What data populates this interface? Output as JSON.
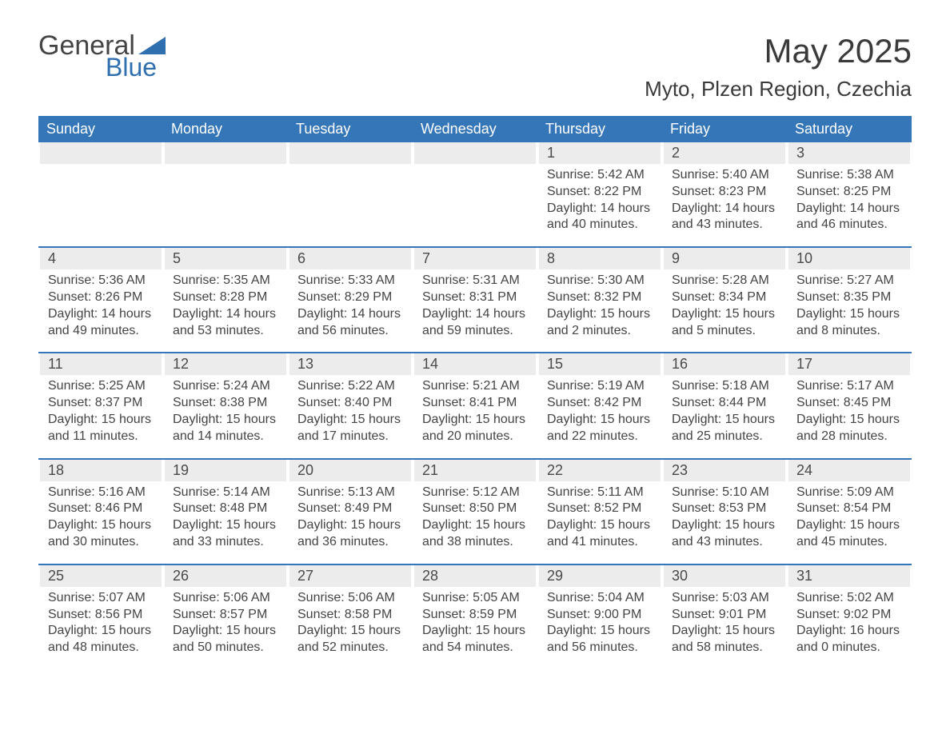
{
  "logo": {
    "general": "General",
    "blue": "Blue"
  },
  "title": "May 2025",
  "location": "Myto, Plzen Region, Czechia",
  "colors": {
    "header_bg": "#3576b8",
    "header_text": "#ffffff",
    "daynum_bg": "#ececec",
    "text": "#3a3a3a",
    "logo_accent": "#2f6fb0",
    "page_bg": "#ffffff"
  },
  "daynames": [
    "Sunday",
    "Monday",
    "Tuesday",
    "Wednesday",
    "Thursday",
    "Friday",
    "Saturday"
  ],
  "labels": {
    "sunrise": "Sunrise:",
    "sunset": "Sunset:",
    "daylight": "Daylight:"
  },
  "leading_blanks": 4,
  "days": [
    {
      "n": "1",
      "sunrise": "5:42 AM",
      "sunset": "8:22 PM",
      "daylight": "14 hours and 40 minutes."
    },
    {
      "n": "2",
      "sunrise": "5:40 AM",
      "sunset": "8:23 PM",
      "daylight": "14 hours and 43 minutes."
    },
    {
      "n": "3",
      "sunrise": "5:38 AM",
      "sunset": "8:25 PM",
      "daylight": "14 hours and 46 minutes."
    },
    {
      "n": "4",
      "sunrise": "5:36 AM",
      "sunset": "8:26 PM",
      "daylight": "14 hours and 49 minutes."
    },
    {
      "n": "5",
      "sunrise": "5:35 AM",
      "sunset": "8:28 PM",
      "daylight": "14 hours and 53 minutes."
    },
    {
      "n": "6",
      "sunrise": "5:33 AM",
      "sunset": "8:29 PM",
      "daylight": "14 hours and 56 minutes."
    },
    {
      "n": "7",
      "sunrise": "5:31 AM",
      "sunset": "8:31 PM",
      "daylight": "14 hours and 59 minutes."
    },
    {
      "n": "8",
      "sunrise": "5:30 AM",
      "sunset": "8:32 PM",
      "daylight": "15 hours and 2 minutes."
    },
    {
      "n": "9",
      "sunrise": "5:28 AM",
      "sunset": "8:34 PM",
      "daylight": "15 hours and 5 minutes."
    },
    {
      "n": "10",
      "sunrise": "5:27 AM",
      "sunset": "8:35 PM",
      "daylight": "15 hours and 8 minutes."
    },
    {
      "n": "11",
      "sunrise": "5:25 AM",
      "sunset": "8:37 PM",
      "daylight": "15 hours and 11 minutes."
    },
    {
      "n": "12",
      "sunrise": "5:24 AM",
      "sunset": "8:38 PM",
      "daylight": "15 hours and 14 minutes."
    },
    {
      "n": "13",
      "sunrise": "5:22 AM",
      "sunset": "8:40 PM",
      "daylight": "15 hours and 17 minutes."
    },
    {
      "n": "14",
      "sunrise": "5:21 AM",
      "sunset": "8:41 PM",
      "daylight": "15 hours and 20 minutes."
    },
    {
      "n": "15",
      "sunrise": "5:19 AM",
      "sunset": "8:42 PM",
      "daylight": "15 hours and 22 minutes."
    },
    {
      "n": "16",
      "sunrise": "5:18 AM",
      "sunset": "8:44 PM",
      "daylight": "15 hours and 25 minutes."
    },
    {
      "n": "17",
      "sunrise": "5:17 AM",
      "sunset": "8:45 PM",
      "daylight": "15 hours and 28 minutes."
    },
    {
      "n": "18",
      "sunrise": "5:16 AM",
      "sunset": "8:46 PM",
      "daylight": "15 hours and 30 minutes."
    },
    {
      "n": "19",
      "sunrise": "5:14 AM",
      "sunset": "8:48 PM",
      "daylight": "15 hours and 33 minutes."
    },
    {
      "n": "20",
      "sunrise": "5:13 AM",
      "sunset": "8:49 PM",
      "daylight": "15 hours and 36 minutes."
    },
    {
      "n": "21",
      "sunrise": "5:12 AM",
      "sunset": "8:50 PM",
      "daylight": "15 hours and 38 minutes."
    },
    {
      "n": "22",
      "sunrise": "5:11 AM",
      "sunset": "8:52 PM",
      "daylight": "15 hours and 41 minutes."
    },
    {
      "n": "23",
      "sunrise": "5:10 AM",
      "sunset": "8:53 PM",
      "daylight": "15 hours and 43 minutes."
    },
    {
      "n": "24",
      "sunrise": "5:09 AM",
      "sunset": "8:54 PM",
      "daylight": "15 hours and 45 minutes."
    },
    {
      "n": "25",
      "sunrise": "5:07 AM",
      "sunset": "8:56 PM",
      "daylight": "15 hours and 48 minutes."
    },
    {
      "n": "26",
      "sunrise": "5:06 AM",
      "sunset": "8:57 PM",
      "daylight": "15 hours and 50 minutes."
    },
    {
      "n": "27",
      "sunrise": "5:06 AM",
      "sunset": "8:58 PM",
      "daylight": "15 hours and 52 minutes."
    },
    {
      "n": "28",
      "sunrise": "5:05 AM",
      "sunset": "8:59 PM",
      "daylight": "15 hours and 54 minutes."
    },
    {
      "n": "29",
      "sunrise": "5:04 AM",
      "sunset": "9:00 PM",
      "daylight": "15 hours and 56 minutes."
    },
    {
      "n": "30",
      "sunrise": "5:03 AM",
      "sunset": "9:01 PM",
      "daylight": "15 hours and 58 minutes."
    },
    {
      "n": "31",
      "sunrise": "5:02 AM",
      "sunset": "9:02 PM",
      "daylight": "16 hours and 0 minutes."
    }
  ]
}
